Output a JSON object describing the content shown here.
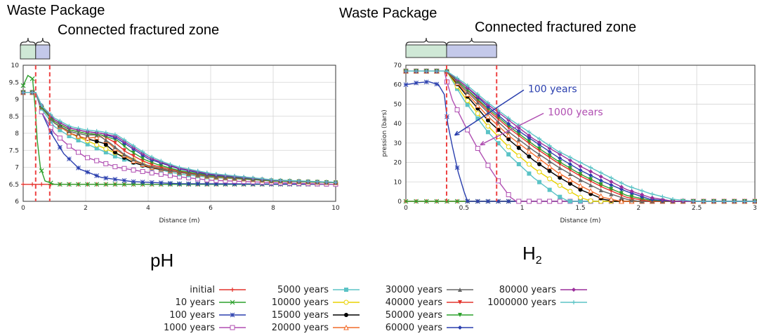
{
  "left_header": {
    "waste_package": "Waste Package",
    "fractured_zone": "Connected fractured zone"
  },
  "right_header": {
    "waste_package": "Waste Package",
    "fractured_zone": "Connected fractured zone"
  },
  "captions": {
    "left": "pH",
    "right_base": "H",
    "right_sub": "2"
  },
  "colors": {
    "waste_package_box": "#cfe8d6",
    "fractured_zone_box": "#c4c9ea",
    "dashed_lines": "#ee4444",
    "annotation_100": "#2a3fae",
    "annotation_1000": "#b04fb2"
  },
  "legend": [
    {
      "label": "initial",
      "color": "#e4332c",
      "marker": "plus"
    },
    {
      "label": "10 years",
      "color": "#2ca02c",
      "marker": "x"
    },
    {
      "label": "100 years",
      "color": "#2a3fae",
      "marker": "star"
    },
    {
      "label": "1000 years",
      "color": "#b04fb2",
      "marker": "square-open"
    },
    {
      "label": "5000 years",
      "color": "#5bc3c6",
      "marker": "square"
    },
    {
      "label": "10000 years",
      "color": "#e8d200",
      "marker": "circle-open"
    },
    {
      "label": "15000 years",
      "color": "#000000",
      "marker": "circle"
    },
    {
      "label": "20000 years",
      "color": "#f26b2a",
      "marker": "triangle-open"
    },
    {
      "label": "30000 years",
      "color": "#666666",
      "marker": "triangle"
    },
    {
      "label": "40000 years",
      "color": "#e4332c",
      "marker": "triangle-down"
    },
    {
      "label": "50000 years",
      "color": "#2ca02c",
      "marker": "triangle-down"
    },
    {
      "label": "60000 years",
      "color": "#2a3fae",
      "marker": "diamond"
    },
    {
      "label": "80000 years",
      "color": "#9b2f9c",
      "marker": "diamond"
    },
    {
      "label": "1000000 years",
      "color": "#5bc3c6",
      "marker": "plus"
    }
  ],
  "chart_data": [
    {
      "type": "line",
      "xlabel": "Distance (m)",
      "ylabel": "",
      "xlim": [
        0,
        10
      ],
      "ylim": [
        6,
        10
      ],
      "xticks": [
        0,
        2,
        4,
        6,
        8,
        10
      ],
      "yticks": [
        6,
        6.5,
        7,
        7.5,
        8,
        8.5,
        9,
        9.5,
        10
      ],
      "grid": true,
      "dashed_lines_x": [
        0.4,
        0.85
      ],
      "series": [
        {
          "name": "initial",
          "color": "#e4332c",
          "x": [
            0,
            0.4,
            0.45,
            10
          ],
          "y": [
            6.5,
            6.5,
            6.5,
            6.5
          ]
        },
        {
          "name": "10 years",
          "color": "#2ca02c",
          "x": [
            0,
            0.15,
            0.3,
            0.38,
            0.45,
            0.55,
            0.7,
            1,
            10
          ],
          "y": [
            9.4,
            9.7,
            9.6,
            8.8,
            7.8,
            7,
            6.6,
            6.5,
            6.5
          ]
        },
        {
          "name": "100 years",
          "color": "#2a3fae",
          "x": [
            0,
            0.4,
            0.6,
            0.9,
            1.3,
            1.8,
            2.5,
            3.5,
            5,
            10
          ],
          "y": [
            9.2,
            9.2,
            8.6,
            8.0,
            7.4,
            6.95,
            6.7,
            6.58,
            6.52,
            6.5
          ]
        },
        {
          "name": "1000 years",
          "color": "#b04fb2",
          "x": [
            0,
            0.4,
            0.6,
            1,
            1.5,
            2,
            3,
            4,
            5,
            6,
            8,
            10
          ],
          "y": [
            9.2,
            9.2,
            8.6,
            8.0,
            7.6,
            7.3,
            7.0,
            6.85,
            6.72,
            6.62,
            6.55,
            6.5
          ]
        },
        {
          "name": "5000 years",
          "color": "#5bc3c6",
          "x": [
            0,
            0.4,
            0.6,
            1,
            1.5,
            2,
            2.5,
            3,
            4,
            5,
            6,
            8,
            10
          ],
          "y": [
            9.2,
            9.2,
            8.7,
            8.2,
            7.9,
            7.7,
            7.5,
            7.3,
            7.0,
            6.8,
            6.7,
            6.6,
            6.55
          ]
        },
        {
          "name": "10000 years",
          "color": "#e8d200",
          "x": [
            0,
            0.4,
            0.6,
            1,
            1.5,
            2,
            2.5,
            3,
            4,
            5,
            6,
            8,
            10
          ],
          "y": [
            9.2,
            9.2,
            8.75,
            8.3,
            8.0,
            7.8,
            7.6,
            7.4,
            7.05,
            6.85,
            6.72,
            6.6,
            6.55
          ]
        },
        {
          "name": "15000 years",
          "color": "#000000",
          "x": [
            0,
            0.4,
            0.6,
            1,
            1.5,
            1.8,
            2.2,
            2.6,
            3,
            3.5,
            4,
            5,
            6,
            8,
            10
          ],
          "y": [
            9.2,
            9.2,
            8.75,
            8.3,
            8.0,
            7.9,
            7.8,
            7.7,
            7.4,
            7.15,
            7.0,
            6.85,
            6.73,
            6.6,
            6.55
          ]
        },
        {
          "name": "20000 years",
          "color": "#f26b2a",
          "x": [
            0,
            0.4,
            0.6,
            1,
            1.5,
            2,
            2.5,
            3,
            3.5,
            4,
            5,
            6,
            8,
            10
          ],
          "y": [
            9.2,
            9.2,
            8.75,
            8.3,
            8.0,
            7.85,
            7.9,
            7.5,
            7.2,
            7.02,
            6.85,
            6.73,
            6.6,
            6.55
          ]
        },
        {
          "name": "30000 years",
          "color": "#666666",
          "x": [
            0,
            0.4,
            0.6,
            1,
            1.5,
            2,
            2.4,
            2.8,
            3.2,
            3.7,
            4,
            5,
            6,
            8,
            10
          ],
          "y": [
            9.2,
            9.2,
            8.75,
            8.3,
            8.05,
            7.95,
            7.95,
            7.7,
            7.4,
            7.15,
            7.05,
            6.85,
            6.73,
            6.6,
            6.55
          ]
        },
        {
          "name": "40000 years",
          "color": "#e4332c",
          "x": [
            0,
            0.4,
            0.6,
            1,
            1.5,
            2,
            2.5,
            2.9,
            3.3,
            3.8,
            4.2,
            5,
            6,
            8,
            10
          ],
          "y": [
            9.2,
            9.2,
            8.75,
            8.35,
            8.1,
            8.0,
            7.95,
            7.75,
            7.45,
            7.2,
            7.05,
            6.88,
            6.75,
            6.6,
            6.55
          ]
        },
        {
          "name": "50000 years",
          "color": "#2ca02c",
          "x": [
            0,
            0.4,
            0.6,
            1,
            1.5,
            2,
            2.5,
            3,
            3.4,
            3.9,
            4.3,
            5,
            6,
            8,
            10
          ],
          "y": [
            9.2,
            9.2,
            8.75,
            8.35,
            8.1,
            8.0,
            7.95,
            7.8,
            7.5,
            7.22,
            7.08,
            6.9,
            6.76,
            6.6,
            6.55
          ]
        },
        {
          "name": "60000 years",
          "color": "#2a3fae",
          "x": [
            0,
            0.4,
            0.6,
            1,
            1.5,
            2,
            2.5,
            3,
            3.5,
            4,
            4.5,
            5,
            6,
            8,
            10
          ],
          "y": [
            9.2,
            9.2,
            8.8,
            8.4,
            8.15,
            8.05,
            8.0,
            7.85,
            7.55,
            7.25,
            7.1,
            6.95,
            6.78,
            6.62,
            6.56
          ]
        },
        {
          "name": "80000 years",
          "color": "#9b2f9c",
          "x": [
            0,
            0.4,
            0.6,
            1,
            1.5,
            2,
            2.5,
            3,
            3.5,
            4,
            4.5,
            5,
            6,
            8,
            10
          ],
          "y": [
            9.2,
            9.2,
            8.8,
            8.4,
            8.15,
            8.05,
            8.0,
            7.9,
            7.6,
            7.3,
            7.12,
            6.97,
            6.8,
            6.62,
            6.56
          ]
        },
        {
          "name": "1000000 years",
          "color": "#5bc3c6",
          "x": [
            0,
            0.4,
            0.6,
            1,
            1.5,
            2,
            2.5,
            3,
            3.5,
            4,
            4.5,
            5,
            6,
            8,
            10
          ],
          "y": [
            9.2,
            9.2,
            8.8,
            8.45,
            8.2,
            8.1,
            8.05,
            7.95,
            7.65,
            7.35,
            7.15,
            7.0,
            6.82,
            6.63,
            6.56
          ]
        }
      ]
    },
    {
      "type": "line",
      "xlabel": "Distance (m)",
      "ylabel": "pression (bars)",
      "xlim": [
        0,
        3
      ],
      "ylim": [
        0,
        70
      ],
      "xticks": [
        0,
        0.5,
        1,
        1.5,
        2,
        2.5,
        3
      ],
      "yticks": [
        0,
        10,
        20,
        30,
        40,
        50,
        60,
        70
      ],
      "grid": true,
      "dashed_lines_x": [
        0.35,
        0.78
      ],
      "annotations": [
        {
          "text": "100 years",
          "color": "#2a3fae",
          "text_x": 1.05,
          "text_y": 58,
          "arrow_to_x": 0.42,
          "arrow_to_y": 34
        },
        {
          "text": "1000 years",
          "color": "#b04fb2",
          "text_x": 1.22,
          "text_y": 46,
          "arrow_to_x": 0.64,
          "arrow_to_y": 29
        }
      ],
      "series": [
        {
          "name": "initial",
          "color": "#e4332c",
          "x": [
            0,
            3
          ],
          "y": [
            0,
            0
          ]
        },
        {
          "name": "10 years",
          "color": "#2ca02c",
          "x": [
            0,
            3
          ],
          "y": [
            0,
            0
          ]
        },
        {
          "name": "100 years",
          "color": "#2a3fae",
          "x": [
            0,
            0.1,
            0.2,
            0.28,
            0.33,
            0.36,
            0.4,
            0.45,
            0.5,
            0.53,
            0.6,
            3
          ],
          "y": [
            60,
            61,
            61.5,
            60,
            55,
            40,
            28,
            15,
            5,
            0,
            0,
            0
          ]
        },
        {
          "name": "1000 years",
          "color": "#b04fb2",
          "x": [
            0,
            0.33,
            0.35,
            0.4,
            0.5,
            0.6,
            0.7,
            0.8,
            0.9,
            0.95,
            1.2,
            3
          ],
          "y": [
            67,
            67,
            62,
            52,
            40,
            29,
            19,
            10,
            2,
            0,
            0,
            0
          ]
        },
        {
          "name": "5000 years",
          "color": "#5bc3c6",
          "x": [
            0,
            0.35,
            0.5,
            0.7,
            0.9,
            1.1,
            1.3,
            1.4,
            1.6,
            3
          ],
          "y": [
            67,
            67,
            52,
            36,
            23,
            12,
            3,
            0,
            0,
            0
          ]
        },
        {
          "name": "10000 years",
          "color": "#e8d200",
          "x": [
            0,
            0.35,
            0.5,
            0.7,
            0.9,
            1.1,
            1.3,
            1.5,
            1.6,
            1.8,
            3
          ],
          "y": [
            67,
            67,
            54,
            39,
            27,
            17,
            9,
            2,
            0,
            0,
            0
          ]
        },
        {
          "name": "15000 years",
          "color": "#000000",
          "x": [
            0,
            0.35,
            0.5,
            0.7,
            0.9,
            1.1,
            1.3,
            1.5,
            1.7,
            1.8,
            2,
            3
          ],
          "y": [
            67,
            67,
            56,
            42,
            31,
            21,
            13,
            6,
            1,
            0,
            0,
            0
          ]
        },
        {
          "name": "20000 years",
          "color": "#f26b2a",
          "x": [
            0,
            0.35,
            0.5,
            0.7,
            0.9,
            1.1,
            1.3,
            1.5,
            1.7,
            1.85,
            2,
            3
          ],
          "y": [
            67,
            67,
            57,
            44,
            33,
            24,
            15,
            8,
            2,
            0,
            0,
            0
          ]
        },
        {
          "name": "30000 years",
          "color": "#666666",
          "x": [
            0,
            0.35,
            0.5,
            0.7,
            0.9,
            1.1,
            1.3,
            1.5,
            1.7,
            1.9,
            2.0,
            2.2,
            3
          ],
          "y": [
            67,
            67,
            58,
            46,
            35,
            26,
            18,
            11,
            5,
            1,
            0,
            0,
            0
          ]
        },
        {
          "name": "40000 years",
          "color": "#e4332c",
          "x": [
            0,
            0.35,
            0.5,
            0.7,
            0.9,
            1.1,
            1.3,
            1.5,
            1.7,
            1.9,
            2.1,
            2.3,
            3
          ],
          "y": [
            67,
            67,
            59,
            47,
            37,
            28,
            20,
            13,
            7,
            2,
            0,
            0,
            0
          ]
        },
        {
          "name": "50000 years",
          "color": "#2ca02c",
          "x": [
            0,
            0.35,
            0.5,
            0.7,
            0.9,
            1.1,
            1.3,
            1.5,
            1.7,
            1.9,
            2.1,
            2.3,
            3
          ],
          "y": [
            67,
            67,
            59,
            48,
            38,
            29,
            21,
            14,
            8,
            3,
            0.5,
            0,
            0
          ]
        },
        {
          "name": "60000 years",
          "color": "#2a3fae",
          "x": [
            0,
            0.35,
            0.5,
            0.7,
            0.9,
            1.1,
            1.3,
            1.5,
            1.7,
            1.9,
            2.1,
            2.3,
            2.4,
            3
          ],
          "y": [
            67,
            67,
            60,
            49,
            39,
            31,
            23,
            16,
            10,
            5,
            1,
            0,
            0,
            0
          ]
        },
        {
          "name": "80000 years",
          "color": "#9b2f9c",
          "x": [
            0,
            0.35,
            0.5,
            0.7,
            0.9,
            1.1,
            1.3,
            1.5,
            1.7,
            1.9,
            2.1,
            2.3,
            2.5,
            3
          ],
          "y": [
            67,
            67,
            60,
            50,
            41,
            32,
            25,
            18,
            12,
            6,
            2,
            0,
            0,
            0
          ]
        },
        {
          "name": "1000000 years",
          "color": "#5bc3c6",
          "x": [
            0,
            0.35,
            0.5,
            0.7,
            0.9,
            1.1,
            1.3,
            1.5,
            1.7,
            1.9,
            2.1,
            2.3,
            2.5,
            2.6,
            3
          ],
          "y": [
            67,
            67,
            61,
            51,
            42,
            34,
            26,
            20,
            14,
            8,
            4,
            1,
            0,
            0,
            0
          ]
        }
      ]
    }
  ]
}
